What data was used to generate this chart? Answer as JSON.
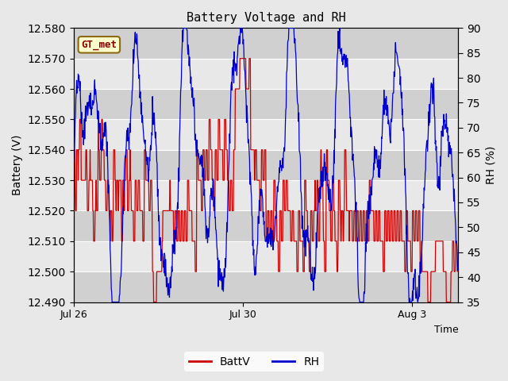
{
  "title": "Battery Voltage and RH",
  "xlabel": "Time",
  "ylabel_left": "Battery (V)",
  "ylabel_right": "RH (%)",
  "annotation_text": "GT_met",
  "annotation_color": "#8B0000",
  "annotation_bg": "#FFFFCC",
  "annotation_border": "#8B6914",
  "left_ylim": [
    12.49,
    12.58
  ],
  "right_ylim": [
    35,
    90
  ],
  "left_yticks": [
    12.49,
    12.5,
    12.51,
    12.52,
    12.53,
    12.54,
    12.55,
    12.56,
    12.57,
    12.58
  ],
  "right_yticks": [
    35,
    40,
    45,
    50,
    55,
    60,
    65,
    70,
    75,
    80,
    85,
    90
  ],
  "xtick_labels": [
    "Jul 26",
    "Jul 30",
    "Aug 3"
  ],
  "xtick_positions": [
    0.0,
    0.44,
    0.88
  ],
  "bg_color": "#E8E8E8",
  "band_dark": "#D0D0D0",
  "band_light": "#E8E8E8",
  "battv_color": "#CC0000",
  "rh_color": "#0000CC",
  "legend_battv": "BattV",
  "legend_rh": "RH",
  "n_points": 1000,
  "seed": 42
}
